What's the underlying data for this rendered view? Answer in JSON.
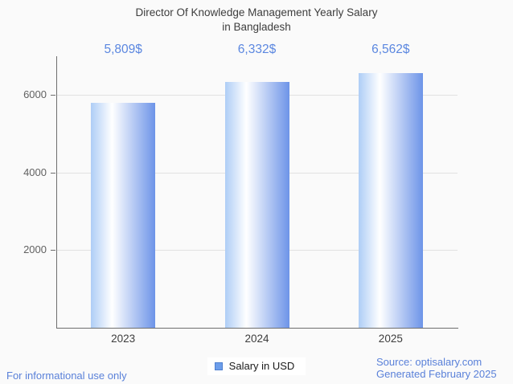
{
  "page": {
    "background": "#fafafa"
  },
  "title": {
    "line1": "Director Of Knowledge Management Yearly Salary",
    "line2": "in Bangladesh"
  },
  "chart_data": {
    "type": "bar",
    "title": "Director Of Knowledge Management Yearly Salary in Bangladesh",
    "categories": [
      "2023",
      "2024",
      "2025"
    ],
    "values": [
      5809,
      6332,
      6562
    ],
    "value_labels": [
      "5,809$",
      "6,332$",
      "6,562$"
    ],
    "xlabel": "",
    "ylabel": "",
    "ylim": [
      0,
      7000
    ],
    "yticks": [
      2000,
      4000,
      6000
    ],
    "grid": true,
    "legend": {
      "label": "Salary in USD",
      "position": "bottom"
    },
    "bar_gradient": [
      "#aecdf6",
      "#ffffff",
      "#6d94e8"
    ],
    "bar_gradient_white_stop_pct": 33
  },
  "footer": {
    "disclaimer": "For informational use only",
    "source_line1": "Source: optisalary.com",
    "source_line2": "Generated February 2025"
  },
  "colors": {
    "value_label": "#5b87e0",
    "footer_text": "#5a81d9",
    "axis": "#6e6e6e",
    "gridline": "#e2e2e2",
    "tick_label": "#616161",
    "title_text": "#3d3d3d",
    "x_label": "#3d3d3d",
    "legend_text": "#1a1a1a",
    "legend_swatch_fill": "#6d9eeb",
    "legend_swatch_border": "#4d7fd0",
    "legend_background": "#ffffff"
  }
}
